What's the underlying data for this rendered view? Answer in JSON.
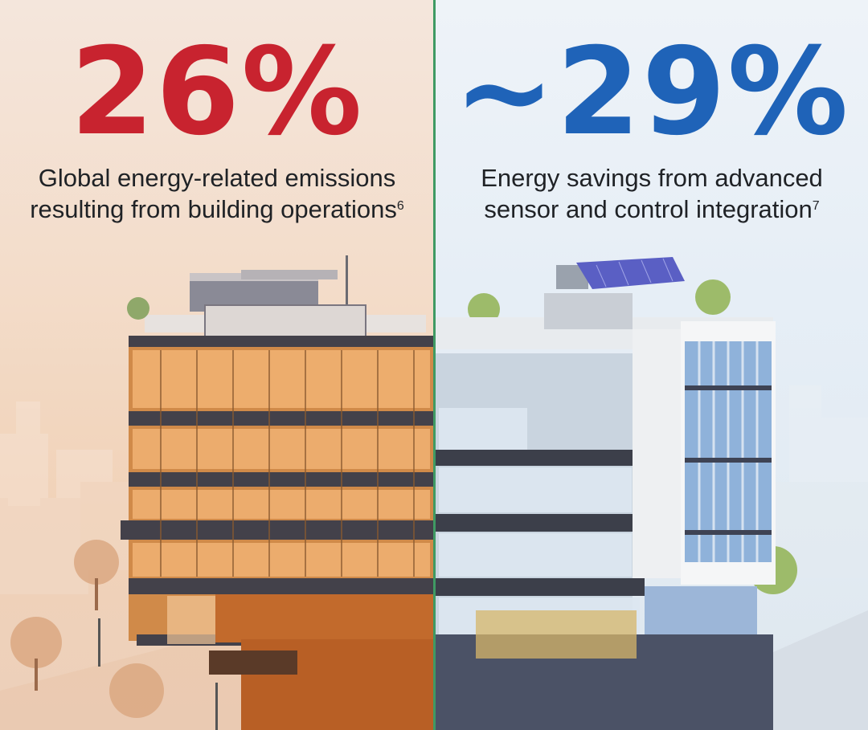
{
  "left": {
    "stat": "26%",
    "caption_line1": "Global energy-related emissions",
    "caption_line2": "resulting from building operations",
    "footnote": "6",
    "accent_color": "#c8232f",
    "image": "warm-toned-office-building-illustration"
  },
  "right": {
    "stat": "~29%",
    "caption_line1": "Energy savings from advanced",
    "caption_line2": "sensor and control integration",
    "footnote": "7",
    "accent_color": "#1f63b8",
    "image": "cool-toned-smart-building-illustration-with-solar-panels"
  },
  "divider_color": "#3f9a63"
}
